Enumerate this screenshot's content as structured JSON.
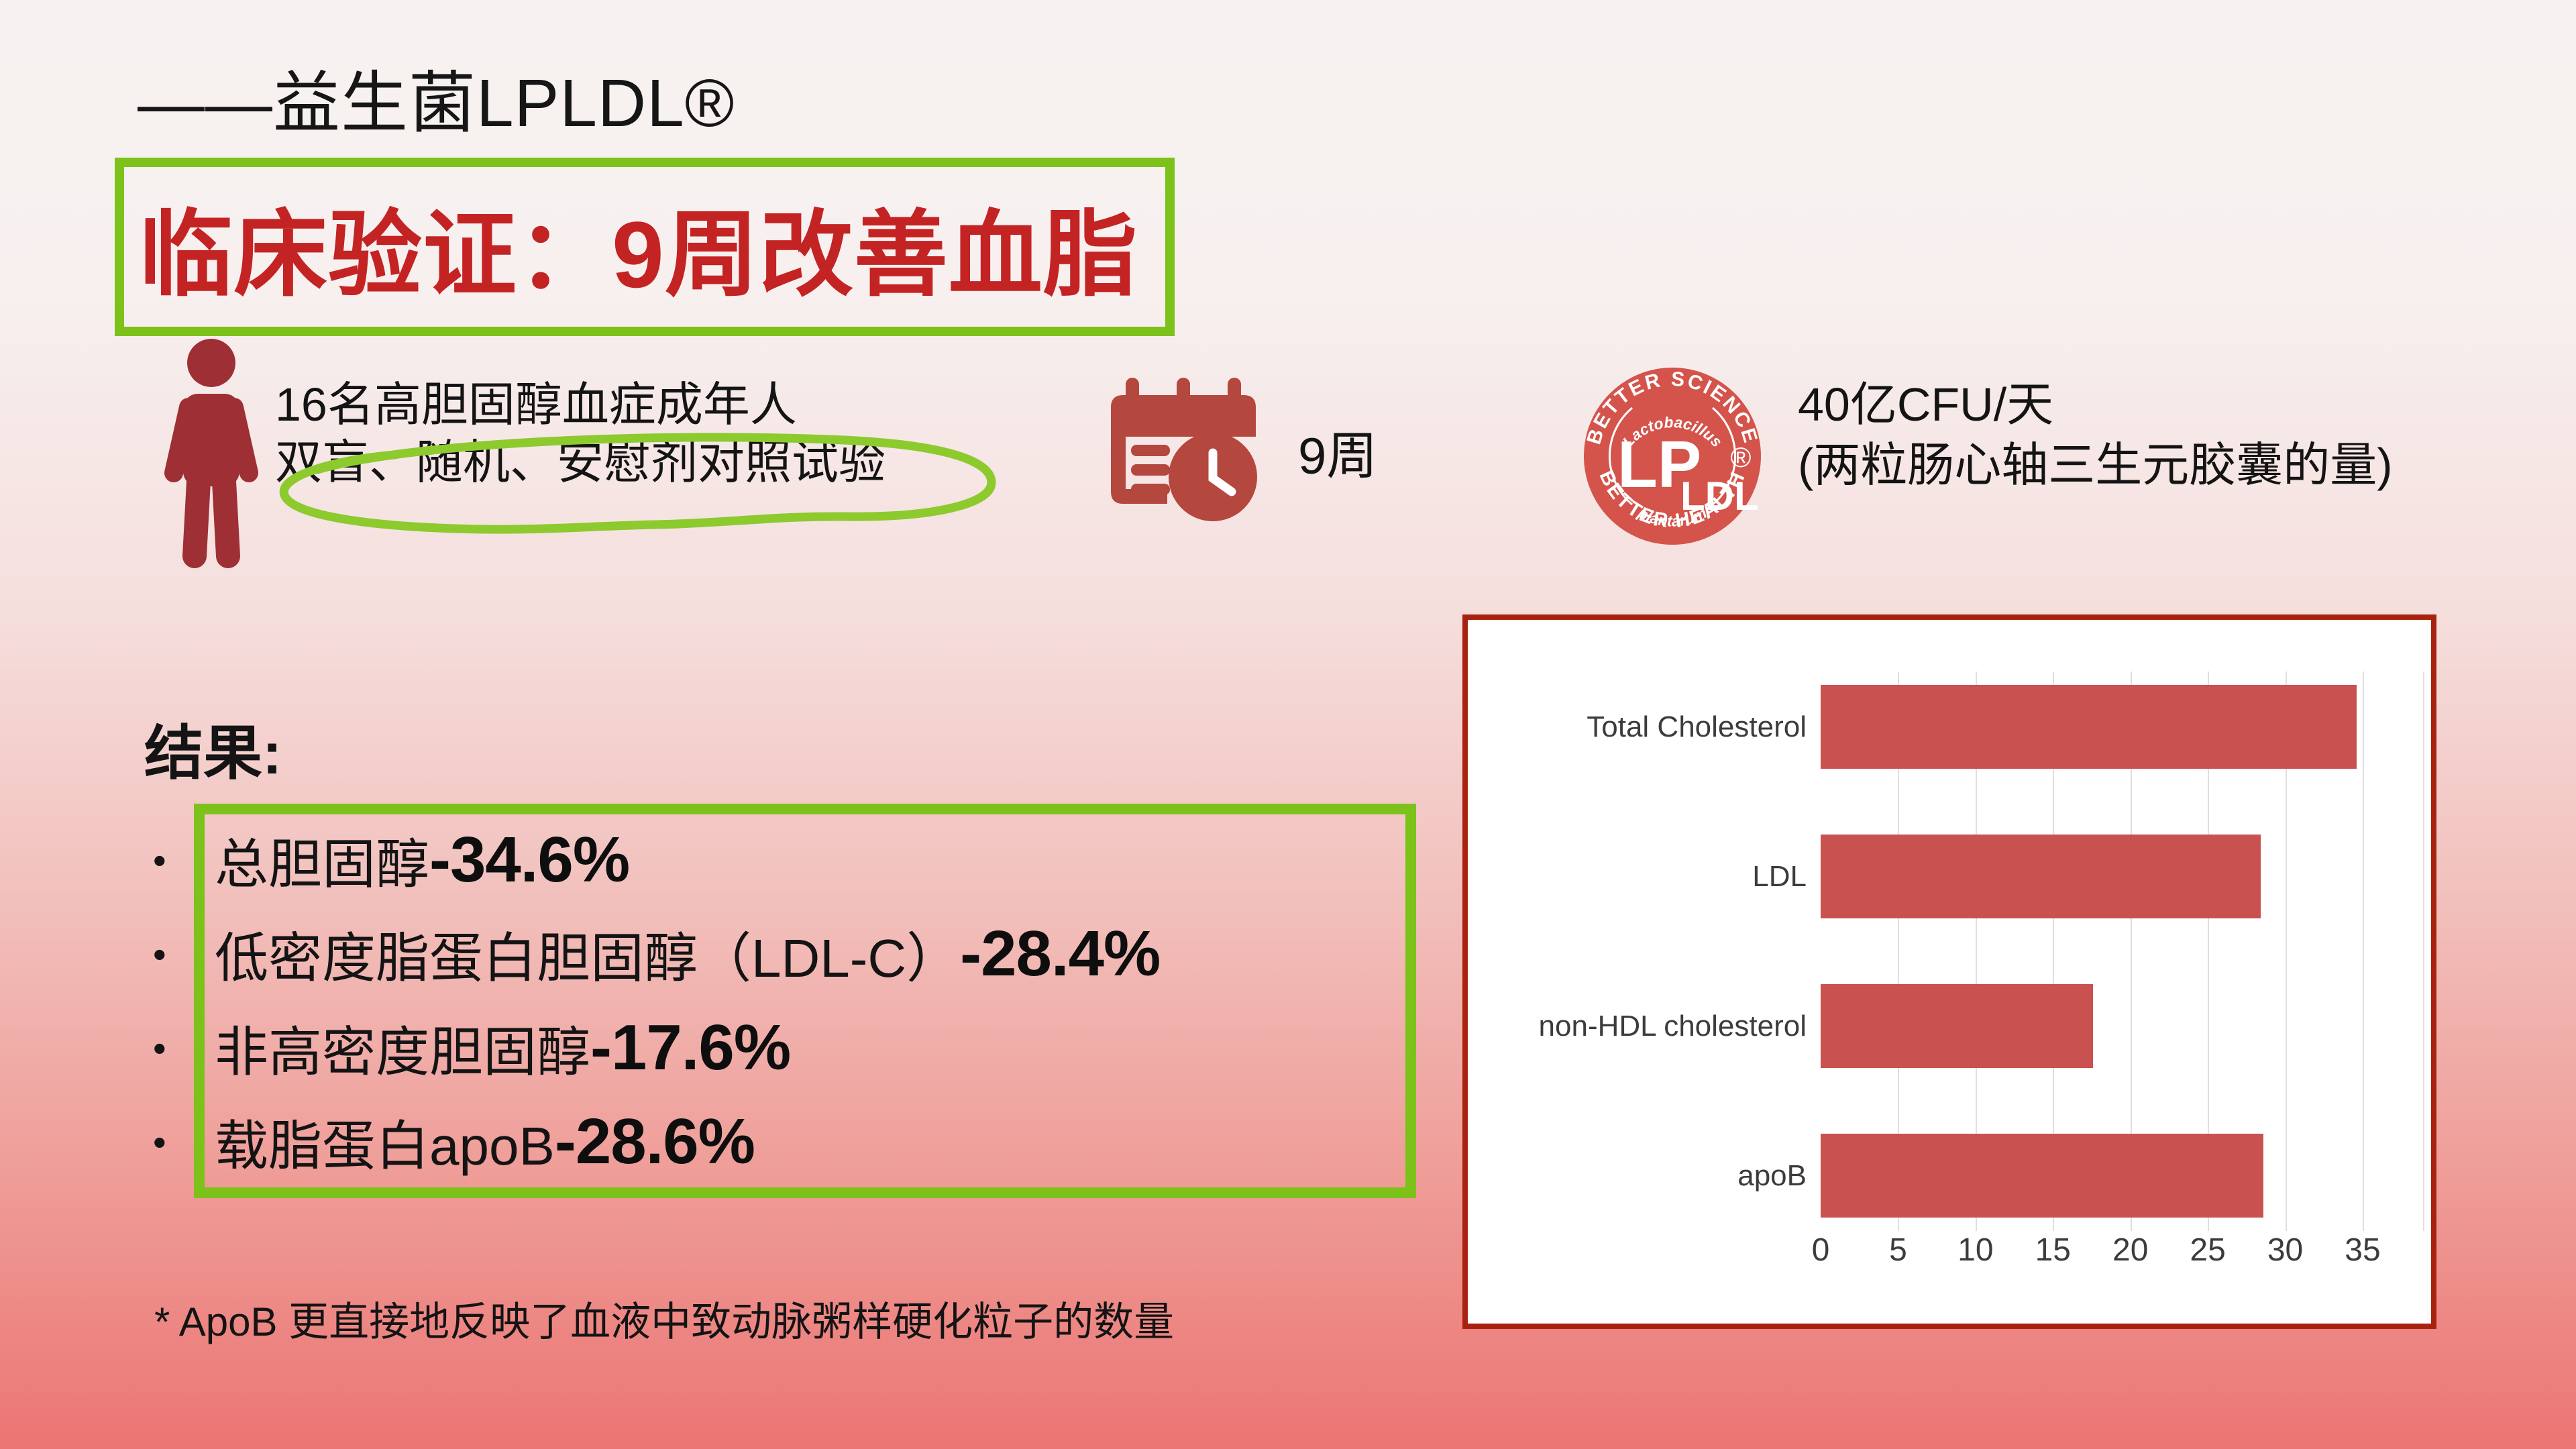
{
  "slide": {
    "title": "——益生菌LPLDL®",
    "headline": "临床验证：9周改善血脂",
    "study": {
      "participants_line1": "16名高胆固醇血症成年人",
      "participants_line2": "双盲、随机、安慰剂对照试验",
      "duration": "9周",
      "dose_line1": "40亿CFU/天",
      "dose_line2": "(两粒肠心轴三生元胶囊的量)"
    },
    "logo": {
      "arc_top": "BETTER SCIENCE",
      "arc_bottom": "BETTER HEALTH",
      "genus": "Lactobacillus",
      "lp": "LP",
      "ldl": "LDL",
      "species": "plantarum",
      "registered": "®"
    },
    "results": {
      "heading": "结果:",
      "bullet_char": "•",
      "items": [
        {
          "label": "总胆固醇",
          "value": "-34.6%"
        },
        {
          "label": "低密度脂蛋白胆固醇（LDL-C）",
          "value": "-28.4%"
        },
        {
          "label": "非高密度胆固醇 ",
          "value": "-17.6%"
        },
        {
          "label": "载脂蛋白apoB ",
          "value": "-28.6%"
        }
      ]
    },
    "footnote": "* ApoB 更直接地反映了血液中致动脉粥样硬化粒子的数量"
  },
  "colors": {
    "headline_red": "#C42323",
    "annotation_green": "#7CC21B",
    "loop_green": "#8CCA2E",
    "person_icon_red": "#9E2F35",
    "calendar_icon_red": "#B4473E",
    "logo_red": "#D4544C",
    "chart_border_red": "#A8230F",
    "bar_red": "#C9514F"
  },
  "chart_data": {
    "type": "bar",
    "orientation": "horizontal",
    "title": "",
    "xlabel": "",
    "ylabel": "",
    "categories": [
      "Total Cholesterol",
      "LDL",
      "non-HDL cholesterol",
      "apoB"
    ],
    "values": [
      34.6,
      28.4,
      17.6,
      28.6
    ],
    "xlim": [
      0,
      35
    ],
    "xticks": [
      0,
      5,
      10,
      15,
      20,
      25,
      30,
      35
    ],
    "grid": true,
    "legend": false,
    "bar_color": "#C9514F"
  }
}
